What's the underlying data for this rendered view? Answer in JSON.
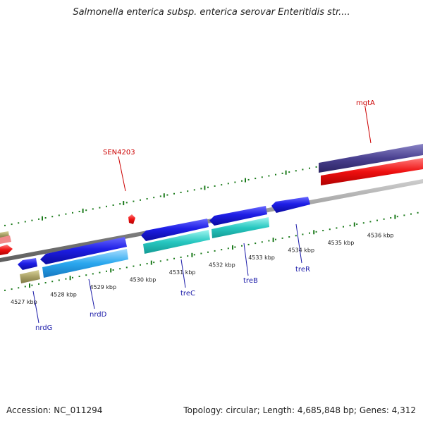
{
  "title": "Salmonella enterica subsp. enterica serovar Enteritidis str....",
  "footer": {
    "accession": "Accession: NC_011294",
    "topology": "Topology: circular; Length: 4,685,848 bp; Genes: 4,312"
  },
  "scale_labels": [
    "4527 kbp",
    "4528 kbp",
    "4529 kbp",
    "4530 kbp",
    "4531 kbp",
    "4532 kbp",
    "4533 kbp",
    "4534 kbp",
    "4535 kbp",
    "4536 kbp"
  ],
  "gene_labels": {
    "forward": [
      "SEN4203",
      "mgtA"
    ],
    "reverse": [
      "nrdG",
      "nrdD",
      "treC",
      "treB",
      "treR"
    ]
  },
  "colors": {
    "forward_label": "#cc0000",
    "reverse_label": "#1a1aa8",
    "forward_tick": "#1a7a1a",
    "backbone": "#8a8a8a"
  }
}
